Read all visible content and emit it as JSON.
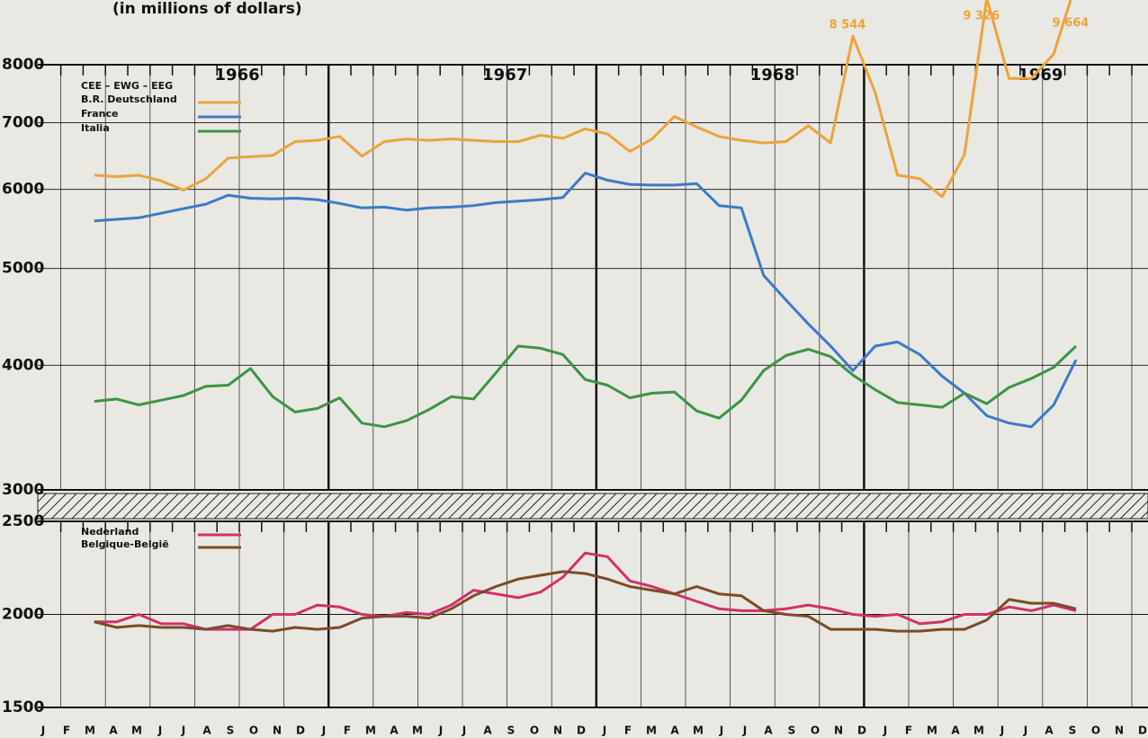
{
  "chart_data": [
    {
      "type": "line",
      "title": "(in millions of dollars)",
      "log_scale": true,
      "grid": true,
      "years": [
        "1966",
        "1967",
        "1968",
        "1969"
      ],
      "legend_title": "CEE – EWG – EEG",
      "legend": "upper left",
      "ylim": [
        3000,
        8000
      ],
      "yticks": [
        3000,
        4000,
        5000,
        6000,
        7000,
        8000
      ],
      "series": [
        {
          "name": "B.R. Deutschland",
          "color": "#e9a53c",
          "values": [
            null,
            6200,
            6180,
            6200,
            6120,
            5990,
            6150,
            6450,
            6470,
            6490,
            6700,
            6720,
            6780,
            6480,
            6700,
            6740,
            6720,
            6740,
            6720,
            6700,
            6700,
            6800,
            6750,
            6900,
            6820,
            6550,
            6740,
            7100,
            6930,
            6780,
            6720,
            6680,
            6700,
            6950,
            6680,
            8544,
            7500,
            6200,
            6150,
            5900,
            6500,
            9326,
            7750,
            7750,
            8200,
            9664,
            null,
            null
          ],
          "value_labels": [
            null,
            null,
            null,
            null,
            null,
            null,
            null,
            null,
            null,
            null,
            null,
            null,
            null,
            null,
            null,
            null,
            null,
            null,
            null,
            null,
            null,
            null,
            null,
            null,
            null,
            null,
            null,
            null,
            null,
            null,
            null,
            null,
            null,
            null,
            null,
            "8 544",
            null,
            null,
            null,
            null,
            null,
            "9 326",
            null,
            null,
            null,
            "9 664",
            null,
            null
          ]
        },
        {
          "name": "France",
          "color": "#3b7bc8",
          "values": [
            null,
            5580,
            5600,
            5620,
            5680,
            5740,
            5800,
            5920,
            5880,
            5870,
            5880,
            5860,
            5810,
            5750,
            5760,
            5720,
            5750,
            5760,
            5780,
            5820,
            5840,
            5860,
            5890,
            6230,
            6130,
            6070,
            6060,
            6060,
            6080,
            5780,
            5750,
            4920,
            4650,
            4400,
            4180,
            3950,
            4180,
            4220,
            4100,
            3900,
            3750,
            3560,
            3500,
            3470,
            3650,
            4050,
            null,
            null
          ]
        },
        {
          "name": "Italia",
          "color": "#3b9447",
          "values": [
            null,
            3680,
            3700,
            3650,
            3690,
            3730,
            3810,
            3820,
            3970,
            3720,
            3590,
            3620,
            3710,
            3500,
            3470,
            3520,
            3610,
            3720,
            3700,
            3930,
            4180,
            4160,
            4100,
            3870,
            3820,
            3710,
            3750,
            3760,
            3600,
            3540,
            3690,
            3950,
            4090,
            4150,
            4080,
            3910,
            3780,
            3670,
            3650,
            3630,
            3750,
            3660,
            3800,
            3880,
            3980,
            4180,
            null,
            null
          ]
        }
      ]
    },
    {
      "type": "line",
      "grid": true,
      "legend": "upper left",
      "categories": [
        "J",
        "F",
        "M",
        "A",
        "M",
        "J",
        "J",
        "A",
        "S",
        "O",
        "N",
        "D",
        "J",
        "F",
        "M",
        "A",
        "M",
        "J",
        "J",
        "A",
        "S",
        "O",
        "N",
        "D",
        "J",
        "F",
        "M",
        "A",
        "M",
        "J",
        "J",
        "A",
        "S",
        "O",
        "N",
        "D",
        "J",
        "F",
        "M",
        "A",
        "M",
        "J",
        "J",
        "A",
        "S",
        "O",
        "N",
        "D"
      ],
      "ylim": [
        1500,
        2500
      ],
      "yticks": [
        1500,
        2000,
        2500
      ],
      "series": [
        {
          "name": "Nederland",
          "color": "#d2306b",
          "values": [
            null,
            1960,
            1960,
            2000,
            1950,
            1950,
            1920,
            1920,
            1920,
            2000,
            2000,
            2050,
            2040,
            2000,
            1990,
            2010,
            2000,
            2050,
            2130,
            2110,
            2090,
            2120,
            2200,
            2330,
            2310,
            2180,
            2150,
            2110,
            2070,
            2030,
            2020,
            2020,
            2030,
            2050,
            2030,
            2000,
            1990,
            2000,
            1950,
            1960,
            2000,
            2000,
            2040,
            2020,
            2050,
            2020,
            null,
            null
          ]
        },
        {
          "name": "Belgique-België",
          "color": "#7b4b2b",
          "values": [
            null,
            1960,
            1930,
            1940,
            1930,
            1930,
            1920,
            1940,
            1920,
            1910,
            1930,
            1920,
            1930,
            1980,
            1990,
            1990,
            1980,
            2030,
            2100,
            2150,
            2190,
            2210,
            2230,
            2220,
            2190,
            2150,
            2130,
            2110,
            2150,
            2110,
            2100,
            2020,
            2000,
            1990,
            1920,
            1920,
            1920,
            1910,
            1910,
            1920,
            1920,
            1970,
            2080,
            2060,
            2060,
            2030,
            null,
            null
          ]
        }
      ]
    }
  ]
}
